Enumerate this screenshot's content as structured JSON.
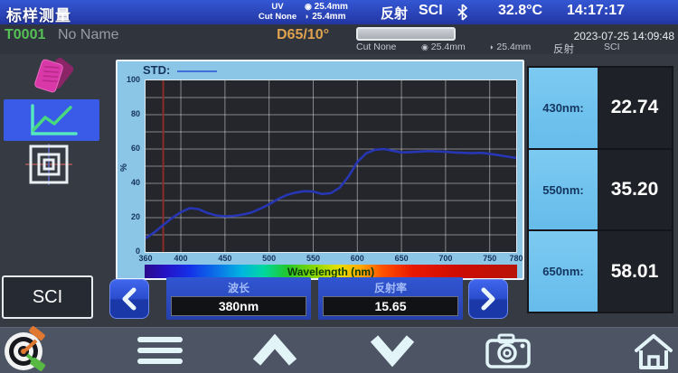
{
  "status_bar": {
    "title": "标样测量",
    "uv_line1": "UV",
    "uv_line2": "Cut None",
    "aperture1": "25.4mm",
    "aperture2": "25.4mm",
    "mode": "反射",
    "sci": "SCI",
    "temperature": "32.8°C",
    "time": "14:17:17"
  },
  "sample_bar": {
    "id": "T0001",
    "name": "No Name",
    "illuminant": "D65/10°",
    "cut": "Cut None",
    "aperture1": "25.4mm",
    "aperture2": "25.4mm",
    "mode": "反射",
    "sci": "SCI",
    "datetime": "2023-07-25 14:09:48"
  },
  "icons": {
    "aperture_glyph": "◉",
    "lens_glyph": "◗"
  },
  "chart_data": {
    "type": "line",
    "title": "STD:",
    "xlabel": "Wavelength (nm)",
    "ylabel": "%",
    "xlim": [
      360,
      780
    ],
    "ylim": [
      0,
      100
    ],
    "x_ticks": [
      360,
      400,
      450,
      500,
      550,
      600,
      650,
      700,
      750,
      780
    ],
    "y_ticks": [
      0,
      20,
      40,
      60,
      80,
      100
    ],
    "grid": true,
    "legend_position": "top-left",
    "cursor_x": 380,
    "cursor_color": "#8a2d28",
    "line_color": "#2636b4",
    "series": [
      {
        "name": "STD",
        "x": [
          360,
          370,
          380,
          390,
          400,
          410,
          420,
          430,
          440,
          450,
          460,
          470,
          480,
          490,
          500,
          510,
          520,
          530,
          540,
          550,
          560,
          570,
          580,
          590,
          600,
          610,
          620,
          630,
          640,
          650,
          660,
          670,
          680,
          690,
          700,
          710,
          720,
          730,
          740,
          750,
          760,
          770,
          780
        ],
        "values": [
          8.0,
          11.5,
          15.65,
          19.8,
          23.2,
          25.6,
          25.0,
          22.74,
          21.3,
          20.8,
          21.0,
          21.8,
          23.0,
          25.2,
          27.8,
          30.8,
          33.2,
          34.6,
          35.4,
          35.2,
          33.8,
          34.3,
          37.5,
          44.0,
          52.5,
          57.5,
          59.6,
          60.0,
          59.0,
          58.01,
          58.2,
          58.5,
          58.8,
          58.6,
          58.4,
          58.0,
          57.8,
          57.6,
          57.8,
          57.2,
          56.4,
          55.6,
          54.8
        ]
      }
    ]
  },
  "readings": {
    "rows": [
      {
        "label": "430nm:",
        "value": "22.74"
      },
      {
        "label": "550nm:",
        "value": "35.20"
      },
      {
        "label": "650nm:",
        "value": "58.01"
      }
    ]
  },
  "controls": {
    "sci_button": "SCI",
    "wavelength_label": "波长",
    "wavelength_value": "380nm",
    "reflectance_label": "反射率",
    "reflectance_value": "15.65"
  },
  "colors": {
    "topbar_blue": "#2c48c0",
    "selected_blue": "#3a5ae8",
    "panel_lightblue": "#8cc6e6",
    "reading_label_blue": "#6ec3ef",
    "sample_id_green": "#55c155",
    "illuminant_orange": "#dfa24e",
    "cursor_red": "#8a2d28",
    "curve_navy": "#2636b4"
  }
}
